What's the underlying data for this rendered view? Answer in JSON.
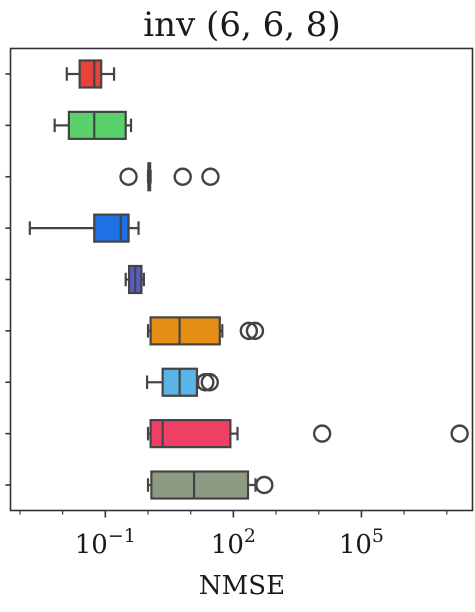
{
  "chart_data": {
    "type": "boxplot",
    "orientation": "horizontal",
    "title": "inv (6, 6, 8)",
    "xlabel": "NMSE",
    "ylabel": "",
    "x_scale": "log",
    "x_ticks": [
      {
        "value": 0.1,
        "base": "10",
        "exp": "−1"
      },
      {
        "value": 100,
        "base": "10",
        "exp": "2"
      },
      {
        "value": 100000,
        "base": "10",
        "exp": "5"
      }
    ],
    "x_range": [
      0.0006,
      40000000
    ],
    "grid": false,
    "legend": "none",
    "boxes": [
      {
        "color": "#e8433b",
        "whisker_low": 0.0125,
        "q1": 0.025,
        "median": 0.055,
        "q3": 0.08,
        "whisker_high": 0.16,
        "outliers": []
      },
      {
        "color": "#5bd16e",
        "whisker_low": 0.0065,
        "q1": 0.014,
        "median": 0.055,
        "q3": 0.3,
        "whisker_high": 0.4,
        "outliers": []
      },
      {
        "color": "#e6a0c4",
        "whisker_low": 1.0,
        "q1": 1.02,
        "median": 1.05,
        "q3": 1.12,
        "whisker_high": 1.15,
        "outliers": [
          0.35,
          6.5,
          29
        ]
      },
      {
        "color": "#1f6fe5",
        "whisker_low": 0.0017,
        "q1": 0.055,
        "median": 0.23,
        "q3": 0.35,
        "whisker_high": 0.6,
        "outliers": []
      },
      {
        "color": "#5b5bc8",
        "whisker_low": 0.3,
        "q1": 0.36,
        "median": 0.5,
        "q3": 0.7,
        "whisker_high": 0.8,
        "outliers": []
      },
      {
        "color": "#e58e16",
        "whisker_low": 1.0,
        "q1": 1.15,
        "median": 5.5,
        "q3": 48,
        "whisker_high": 55,
        "outliers": [
          230,
          320
        ]
      },
      {
        "color": "#5ab4e6",
        "whisker_low": 0.95,
        "q1": 2.2,
        "median": 5.5,
        "q3": 14,
        "whisker_high": 15,
        "outliers": [
          22,
          28
        ]
      },
      {
        "color": "#ee3f64",
        "whisker_low": 1.0,
        "q1": 1.15,
        "median": 2.2,
        "q3": 85,
        "whisker_high": 125,
        "outliers": [
          12000,
          20000000
        ]
      },
      {
        "color": "#8d9a84",
        "whisker_low": 1.0,
        "q1": 1.2,
        "median": 12,
        "q3": 220,
        "whisker_high": 330,
        "outliers": [
          530
        ]
      }
    ]
  }
}
